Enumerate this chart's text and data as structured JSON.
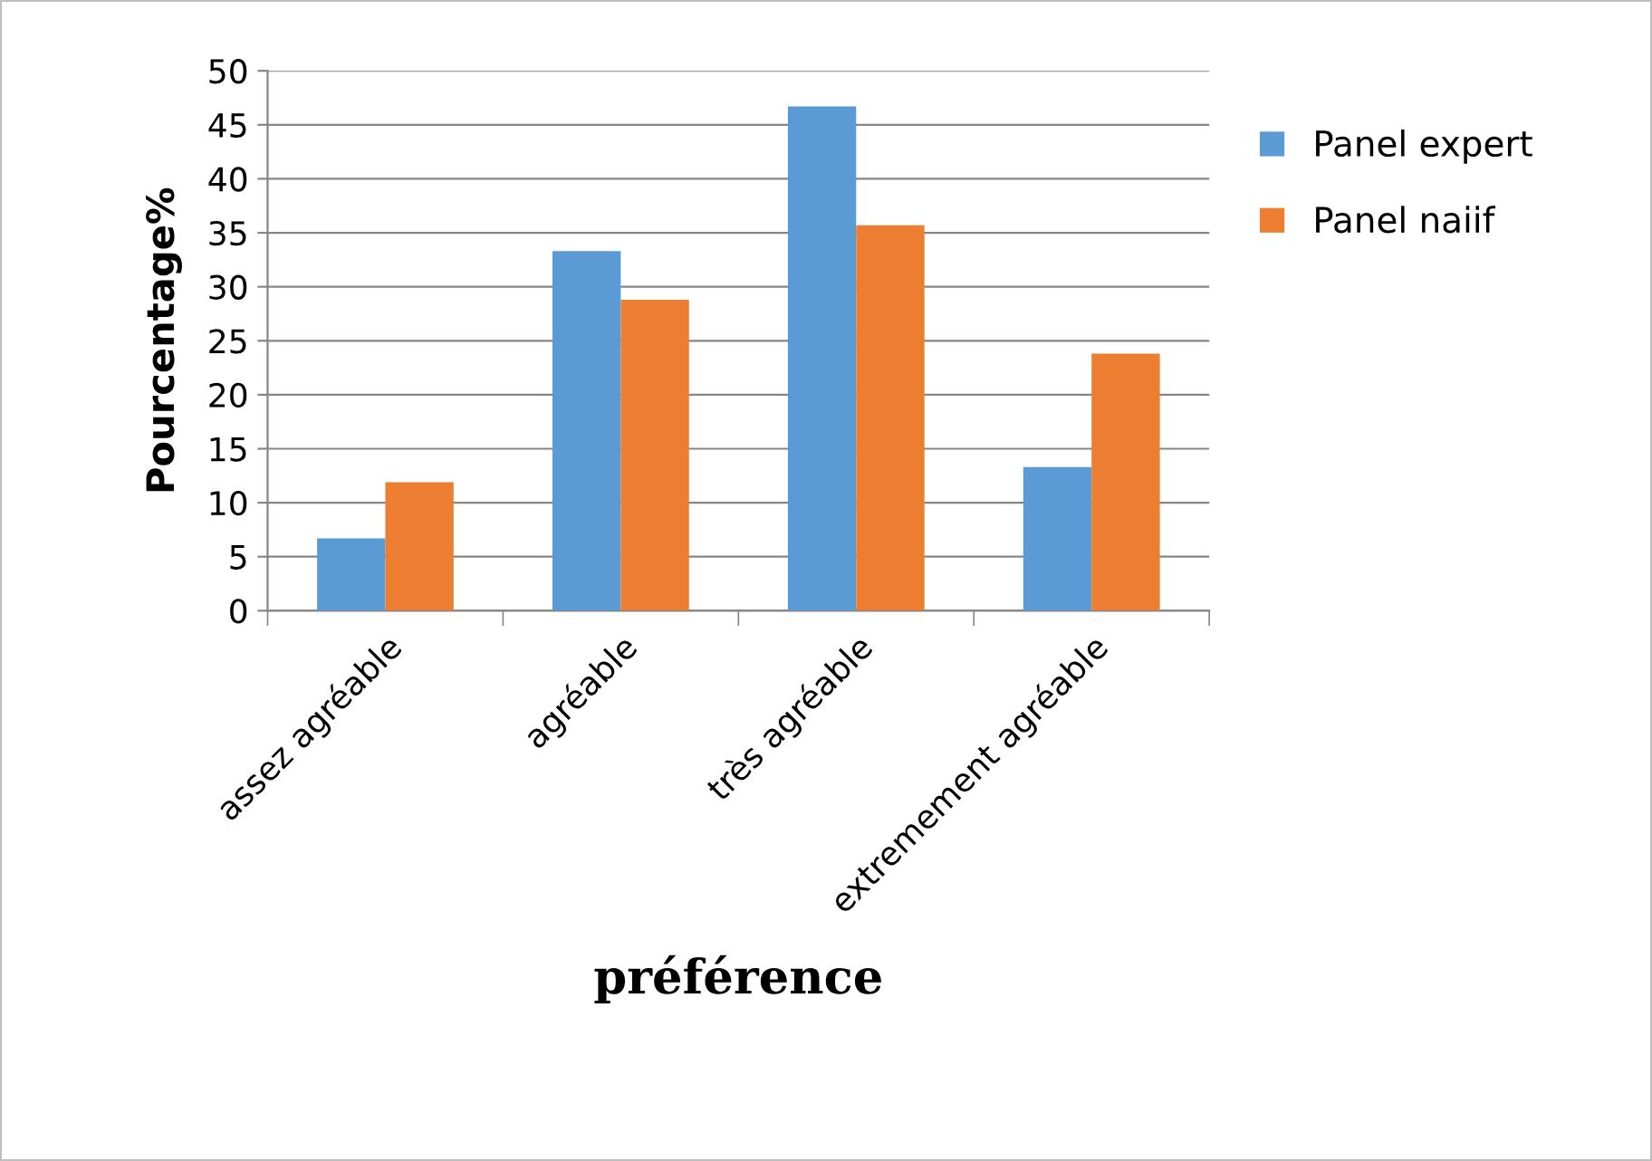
{
  "chart_data": {
    "type": "bar",
    "xlabel": "préférence",
    "ylabel": "Pourcentage%",
    "categories": [
      "assez agréable",
      "agréable",
      "très agréable",
      "extremement agréable"
    ],
    "series": [
      {
        "name": "Panel expert",
        "color": "#5b9bd5",
        "values": [
          6.7,
          33.3,
          46.7,
          13.3
        ]
      },
      {
        "name": "Panel naiif",
        "color": "#ed7d31",
        "values": [
          11.9,
          28.8,
          35.7,
          23.8
        ]
      }
    ],
    "ylim": [
      0,
      50
    ],
    "yticks": [
      0,
      5,
      10,
      15,
      20,
      25,
      30,
      35,
      40,
      45,
      50
    ],
    "grid": "y",
    "legend": "top right"
  }
}
